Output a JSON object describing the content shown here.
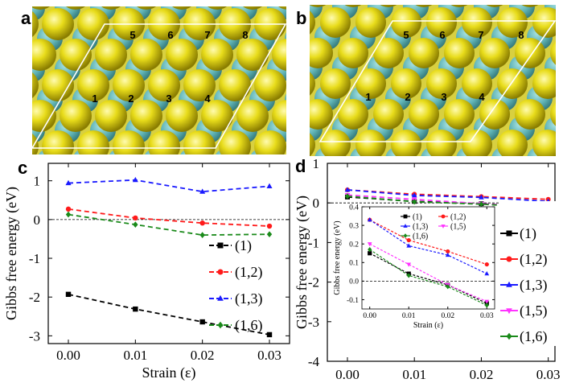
{
  "panels": {
    "a": "a",
    "b": "b",
    "c": "c",
    "d": "d"
  },
  "colors": {
    "sulfur": "#e8dc1a",
    "metal": "#5fb3b5",
    "s1": "#000000",
    "s12": "#ff1a1a",
    "s13": "#1a1aff",
    "s15": "#ff33ff",
    "s16": "#1a8a1a"
  },
  "sites": [
    "1",
    "2",
    "3",
    "4",
    "5",
    "6",
    "7",
    "8"
  ],
  "chart_data": [
    {
      "type": "line",
      "panel": "c",
      "xlabel": "Strain (ε)",
      "ylabel": "Gibbs free energy (eV)",
      "x": [
        0.0,
        0.01,
        0.02,
        0.03
      ],
      "xticks": [
        "0.00",
        "0.01",
        "0.02",
        "0.03"
      ],
      "ylim": [
        -3.2,
        1.45
      ],
      "yticks": [
        "-3",
        "-2",
        "-1",
        "0",
        "1"
      ],
      "yticks_values": [
        -3,
        -2,
        -1,
        0,
        1
      ],
      "series": [
        {
          "name": "(1)",
          "values": [
            -1.93,
            -2.31,
            -2.64,
            -2.97
          ]
        },
        {
          "name": "(1,2)",
          "values": [
            0.27,
            0.04,
            -0.09,
            -0.17
          ]
        },
        {
          "name": "(1,3)",
          "values": [
            0.94,
            1.02,
            0.72,
            0.86
          ]
        },
        {
          "name": "(1,6)",
          "values": [
            0.13,
            -0.13,
            -0.4,
            -0.38
          ]
        }
      ],
      "legend": "bottom-right"
    },
    {
      "type": "line",
      "panel": "d",
      "xlabel": "Strain (ε)",
      "ylabel": "Gibbs free energy (eV)",
      "x": [
        0.0,
        0.01,
        0.02,
        0.03
      ],
      "xticks": [
        "0.00",
        "0.01",
        "0.02",
        "0.03"
      ],
      "ylim": [
        -4,
        1
      ],
      "yticks": [
        "-4",
        "-3",
        "-2",
        "-1",
        "0",
        "1"
      ],
      "yticks_values": [
        -4,
        -3,
        -2,
        -1,
        0,
        1
      ],
      "series": [
        {
          "name": "(1)",
          "values": [
            0.15,
            0.04,
            -0.02,
            -0.12
          ]
        },
        {
          "name": "(1,2)",
          "values": [
            0.33,
            0.22,
            0.16,
            0.09
          ]
        },
        {
          "name": "(1,3)",
          "values": [
            0.33,
            0.19,
            0.14,
            0.04
          ]
        },
        {
          "name": "(1,5)",
          "values": [
            0.2,
            0.09,
            -0.02,
            -0.11
          ]
        },
        {
          "name": "(1,6)",
          "values": [
            0.17,
            0.03,
            -0.03,
            -0.13
          ]
        }
      ],
      "legend": "right"
    },
    {
      "type": "line",
      "panel": "d-inset",
      "xlabel": "Strain (ε)",
      "ylabel": "Gibbs free energy (eV)",
      "x": [
        0.0,
        0.01,
        0.02,
        0.03
      ],
      "xticks": [
        "0.00",
        "0.01",
        "0.02",
        "0.03"
      ],
      "ylim": [
        -0.15,
        0.4
      ],
      "yticks": [
        "-0.1",
        "0.0",
        "0.1",
        "0.2",
        "0.3",
        "0.4"
      ],
      "yticks_values": [
        -0.1,
        0.0,
        0.1,
        0.2,
        0.3,
        0.4
      ],
      "series": [
        {
          "name": "(1)",
          "values": [
            0.15,
            0.04,
            -0.02,
            -0.12
          ]
        },
        {
          "name": "(1,2)",
          "values": [
            0.33,
            0.22,
            0.16,
            0.09
          ]
        },
        {
          "name": "(1,3)",
          "values": [
            0.33,
            0.19,
            0.14,
            0.04
          ]
        },
        {
          "name": "(1,5)",
          "values": [
            0.2,
            0.09,
            -0.02,
            -0.11
          ]
        },
        {
          "name": "(1,6)",
          "values": [
            0.17,
            0.03,
            -0.03,
            -0.13
          ]
        }
      ],
      "legend": "top"
    }
  ]
}
